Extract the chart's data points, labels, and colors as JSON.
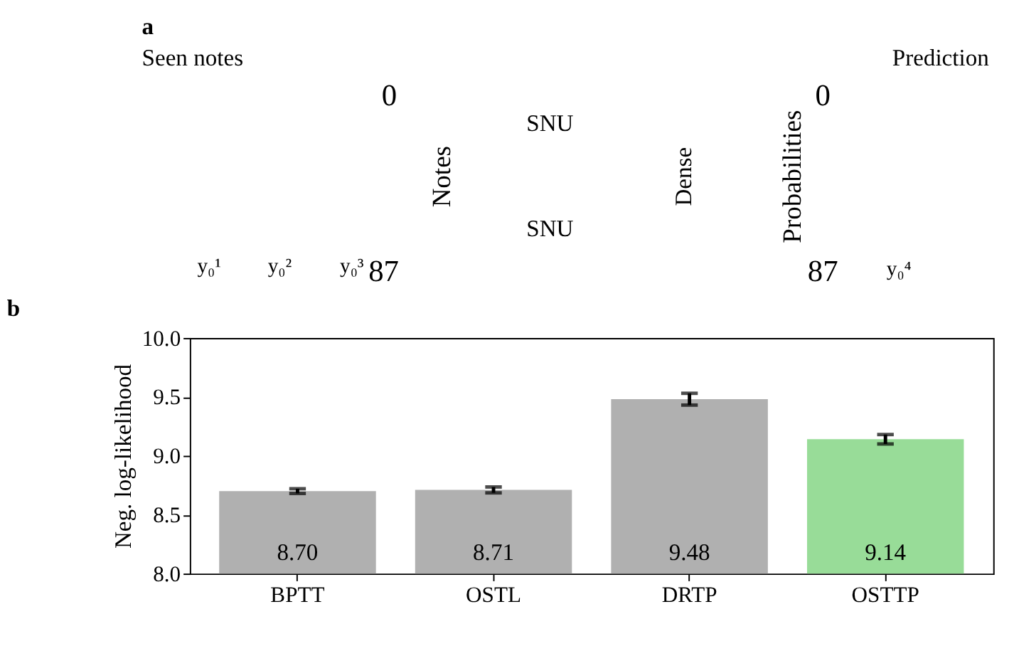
{
  "chart_data": [
    {
      "type": "other",
      "title": "a",
      "annotations": [
        "Seen notes",
        "Prediction",
        "0",
        "87",
        "Notes",
        "SNU",
        "SNU",
        "Dense",
        "Probabilities",
        "0",
        "87",
        "y₀¹",
        "y₀²",
        "y₀³",
        "y₀⁴"
      ]
    },
    {
      "type": "bar",
      "title": "b",
      "ylabel": "Neg. log-likelihood",
      "categories": [
        "BPTT",
        "OSTL",
        "DRTP",
        "OSTTP"
      ],
      "values": [
        8.7,
        8.71,
        9.48,
        9.14
      ],
      "colors": [
        "#b0b0b0",
        "#b0b0b0",
        "#b0b0b0",
        "#98dc98"
      ],
      "errors": [
        0.02,
        0.025,
        0.05,
        0.04
      ],
      "value_labels": [
        "8.70",
        "8.71",
        "9.48",
        "9.14"
      ],
      "ylim": [
        8.0,
        10.0
      ],
      "yticks": [
        {
          "value": 8.0,
          "label": "8.0"
        },
        {
          "value": 8.5,
          "label": "8.5"
        },
        {
          "value": 9.0,
          "label": "9.0"
        },
        {
          "value": 9.5,
          "label": "9.5"
        },
        {
          "value": 10.0,
          "label": "10.0"
        }
      ],
      "grid": false
    }
  ]
}
